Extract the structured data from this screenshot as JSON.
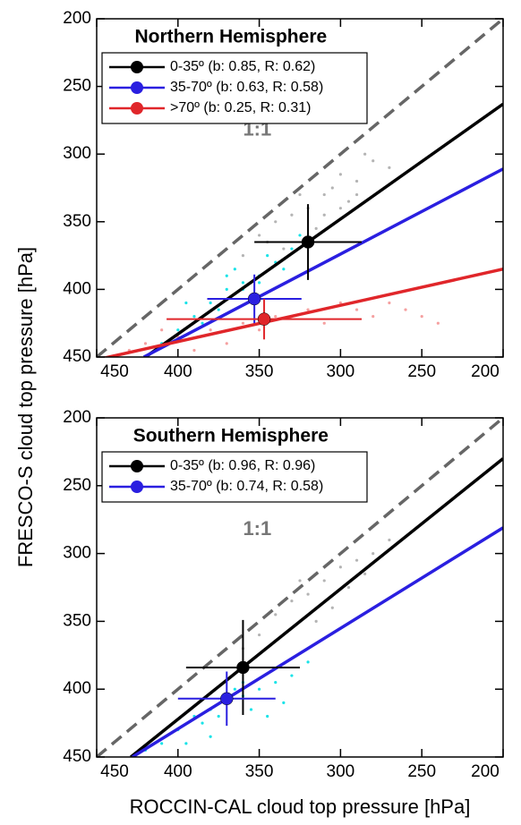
{
  "ylabel": "FRESCO-S cloud top pressure [hPa]",
  "xlabel": "ROCCIN-CAL cloud top pressure [hPa]",
  "chart_data": [
    {
      "type": "scatter",
      "title": "Northern Hemisphere",
      "annotation": "1:1",
      "identity_line": true,
      "xlim": [
        450,
        200
      ],
      "ylim": [
        450,
        200
      ],
      "xticks": [
        450,
        400,
        350,
        300,
        250,
        200
      ],
      "yticks": [
        200,
        250,
        300,
        350,
        400,
        450
      ],
      "clouds": [
        {
          "color": "#b4b4b4",
          "x": [
            300,
            290,
            310,
            320,
            330,
            280,
            295,
            340,
            350,
            305,
            315,
            285,
            325,
            360,
            345,
            300,
            270,
            335,
            310,
            290
          ],
          "y": [
            315,
            320,
            330,
            340,
            345,
            305,
            335,
            350,
            360,
            325,
            355,
            300,
            330,
            375,
            365,
            340,
            310,
            370,
            345,
            330
          ]
        },
        {
          "color": "#19e3e8",
          "x": [
            380,
            370,
            360,
            350,
            340,
            390,
            400,
            365,
            355,
            345,
            330,
            375,
            385,
            410,
            395,
            335,
            325,
            360,
            370,
            350
          ],
          "y": [
            410,
            400,
            395,
            390,
            380,
            420,
            430,
            385,
            405,
            375,
            370,
            415,
            425,
            440,
            410,
            385,
            360,
            400,
            390,
            395
          ]
        },
        {
          "color": "#f5a0a0",
          "x": [
            420,
            400,
            380,
            360,
            340,
            320,
            300,
            280,
            260,
            240,
            390,
            350,
            310,
            270,
            430,
            370,
            330,
            290,
            250,
            410
          ],
          "y": [
            440,
            435,
            430,
            425,
            420,
            415,
            410,
            420,
            415,
            425,
            445,
            430,
            425,
            410,
            445,
            440,
            420,
            415,
            420,
            430
          ]
        }
      ],
      "series": [
        {
          "name": "0-35º (b: 0.85, R: 0.62)",
          "color": "#000000",
          "x": 320,
          "y": 365,
          "xerr": 33,
          "yerr": 28,
          "line": {
            "x": [
              420,
              200
            ],
            "y": [
              450,
              263
            ]
          }
        },
        {
          "name": "35-70º (b: 0.63, R: 0.58)",
          "color": "#2a1fe0",
          "x": 353,
          "y": 407,
          "xerr": 29,
          "yerr": 18,
          "line": {
            "x": [
              421,
              200
            ],
            "y": [
              450,
              311
            ]
          }
        },
        {
          "name": ">70º (b: 0.25, R: 0.31)",
          "color": "#e0262a",
          "x": 347,
          "y": 422,
          "xerr": 60,
          "yerr": 15,
          "line": {
            "x": [
              450,
              200
            ],
            "y": [
              452,
              385
            ]
          }
        }
      ]
    },
    {
      "type": "scatter",
      "title": "Southern Hemisphere",
      "annotation": "1:1",
      "identity_line": true,
      "xlim": [
        450,
        200
      ],
      "ylim": [
        450,
        200
      ],
      "xticks": [
        450,
        400,
        350,
        300,
        250,
        200
      ],
      "yticks": [
        200,
        250,
        300,
        350,
        400,
        450
      ],
      "clouds": [
        {
          "color": "#b4b4b4",
          "x": [
            300,
            290,
            280,
            310,
            320,
            330,
            340,
            285,
            295,
            305,
            315,
            350,
            360,
            270,
            325
          ],
          "y": [
            310,
            305,
            300,
            320,
            330,
            335,
            345,
            315,
            325,
            340,
            350,
            360,
            370,
            290,
            320
          ]
        },
        {
          "color": "#19e3e8",
          "x": [
            400,
            390,
            380,
            370,
            360,
            350,
            340,
            330,
            320,
            410,
            420,
            385,
            375,
            365,
            355,
            345,
            335,
            395,
            380,
            360
          ],
          "y": [
            430,
            420,
            415,
            410,
            405,
            400,
            395,
            390,
            380,
            440,
            445,
            425,
            420,
            400,
            415,
            420,
            410,
            440,
            435,
            395
          ]
        }
      ],
      "series": [
        {
          "name": "0-35º (b: 0.96, R: 0.96)",
          "color": "#000000",
          "x": 360,
          "y": 384,
          "xerr": 35,
          "yerr": 35,
          "line": {
            "x": [
              429,
              200
            ],
            "y": [
              450,
              230
            ]
          }
        },
        {
          "name": "35-70º (b: 0.74, R: 0.58)",
          "color": "#2a1fe0",
          "x": 370,
          "y": 407,
          "xerr": 30,
          "yerr": 20,
          "line": {
            "x": [
              428,
              200
            ],
            "y": [
              450,
              281
            ]
          }
        }
      ]
    }
  ]
}
